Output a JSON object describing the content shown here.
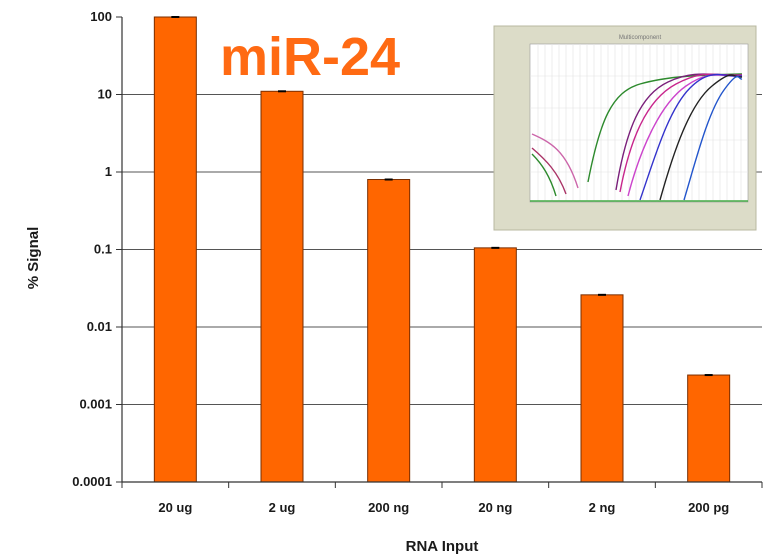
{
  "chart_data": {
    "type": "bar",
    "title": "miR-24",
    "xlabel": "RNA Input",
    "ylabel": "% Signal",
    "yscale": "log",
    "ylim": [
      0.0001,
      100
    ],
    "yticks": [
      "100",
      "10",
      "1",
      "0.1",
      "0.01",
      "0.001",
      "0.0001"
    ],
    "categories": [
      "20 ug",
      "2 ug",
      "200 ng",
      "20 ng",
      "2 ng",
      "200 pg"
    ],
    "values": [
      100,
      11,
      0.8,
      0.105,
      0.026,
      0.0024
    ],
    "error_bars": true,
    "grid": true,
    "bar_color": "#ff6600",
    "title_color": "#ff6a13",
    "inset": {
      "title": "Multicomponent",
      "description": "amplification plot (fluorescence curves)"
    }
  }
}
